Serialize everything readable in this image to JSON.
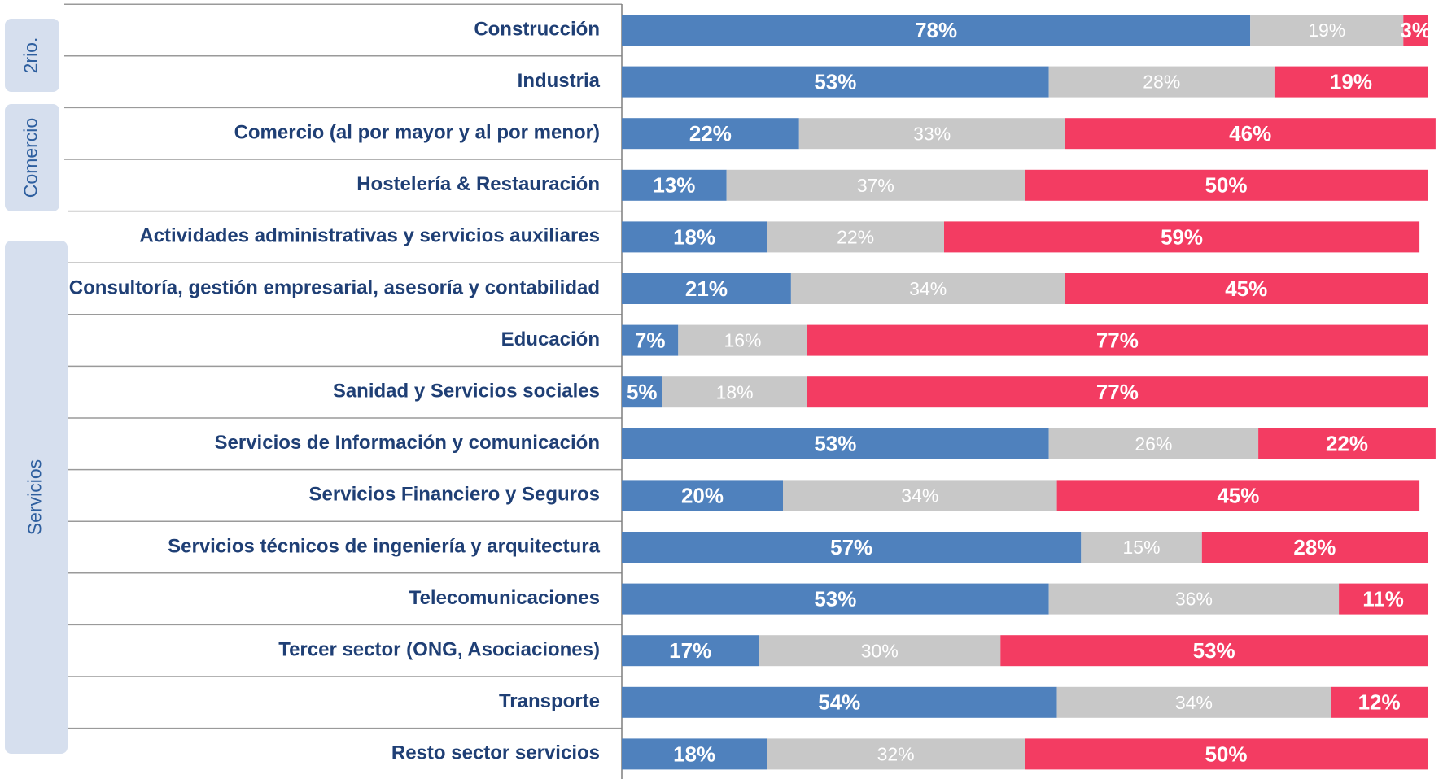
{
  "chart_data": {
    "type": "stacked-bar-horizontal",
    "categories": [
      "Construcción",
      "Industria",
      "Comercio (al por mayor y al por menor)",
      "Hostelería & Restauración",
      "Actividades administrativas y servicios auxiliares",
      "Consultoría, gestión empresarial, asesoría y contabilidad",
      "Educación",
      "Sanidad y Servicios sociales",
      "Servicios de Información y comunicación",
      "Servicios Financiero y Seguros",
      "Servicios técnicos de ingeniería y arquitectura",
      "Telecomunicaciones",
      "Tercer sector (ONG, Asociaciones)",
      "Transporte",
      "Resto sector servicios"
    ],
    "groups": [
      "2rio.",
      "Comercio",
      "Servicios"
    ],
    "xlim": [
      0,
      100
    ],
    "series": [
      {
        "color": "#4f81bd",
        "values": [
          78,
          53,
          22,
          13,
          18,
          21,
          7,
          5,
          53,
          20,
          57,
          53,
          17,
          54,
          18
        ],
        "value_labels": [
          "78%",
          "53%",
          "22%",
          "13%",
          "18%",
          "21%",
          "7%",
          "5%",
          "53%",
          "20%",
          "57%",
          "53%",
          "17%",
          "54%",
          "18%"
        ]
      },
      {
        "color": "#c8c8c8",
        "values": [
          19,
          28,
          33,
          37,
          22,
          34,
          16,
          18,
          26,
          34,
          15,
          36,
          30,
          34,
          32
        ],
        "value_labels": [
          "19%",
          "28%",
          "33%",
          "37%",
          "22%",
          "34%",
          "16%",
          "18%",
          "26%",
          "34%",
          "15%",
          "36%",
          "30%",
          "34%",
          "32%"
        ]
      },
      {
        "color": "#f33c62",
        "values": [
          3,
          19,
          46,
          50,
          59,
          45,
          77,
          77,
          22,
          45,
          28,
          11,
          53,
          12,
          50
        ],
        "value_labels": [
          "3%",
          "19%",
          "46%",
          "50%",
          "59%",
          "45%",
          "77%",
          "77%",
          "22%",
          "45%",
          "28%",
          "11%",
          "53%",
          "12%",
          "50%"
        ]
      }
    ]
  }
}
